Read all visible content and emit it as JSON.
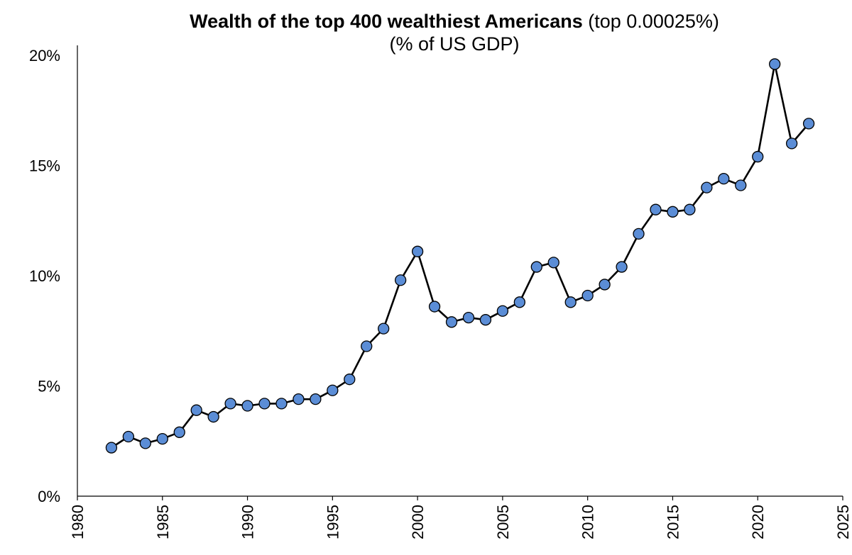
{
  "chart_data": {
    "type": "line",
    "title_bold": "Wealth of the top 400 wealthiest Americans",
    "title_rest": "(top 0.00025%)",
    "subtitle": "(% of US GDP)",
    "xlabel": "",
    "ylabel": "",
    "xlim": [
      1980,
      2025
    ],
    "ylim": [
      0,
      20
    ],
    "x_ticks": [
      "1980",
      "1985",
      "1990",
      "1995",
      "2000",
      "2005",
      "2010",
      "2015",
      "2020",
      "2025"
    ],
    "y_ticks": [
      "0%",
      "5%",
      "10%",
      "15%",
      "20%"
    ],
    "grid": false,
    "legend": "none",
    "series": [
      {
        "color": "#5b8dd6",
        "line_color": "#000000",
        "x": [
          1982,
          1983,
          1984,
          1985,
          1986,
          1987,
          1988,
          1989,
          1990,
          1991,
          1992,
          1993,
          1994,
          1995,
          1996,
          1997,
          1998,
          1999,
          2000,
          2001,
          2002,
          2003,
          2004,
          2005,
          2006,
          2007,
          2008,
          2009,
          2010,
          2011,
          2012,
          2013,
          2014,
          2015,
          2016,
          2017,
          2018,
          2019,
          2020,
          2021,
          2022,
          2023
        ],
        "y": [
          2.2,
          2.7,
          2.4,
          2.6,
          2.9,
          3.9,
          3.6,
          4.2,
          4.1,
          4.2,
          4.2,
          4.4,
          4.4,
          4.8,
          5.3,
          6.8,
          7.6,
          9.8,
          11.1,
          8.6,
          7.9,
          8.1,
          8.0,
          8.4,
          8.8,
          10.4,
          10.6,
          8.8,
          9.1,
          9.6,
          10.4,
          11.9,
          13.0,
          12.9,
          13.0,
          14.0,
          14.4,
          14.1,
          15.4,
          19.6,
          16.0,
          16.9
        ]
      }
    ]
  }
}
